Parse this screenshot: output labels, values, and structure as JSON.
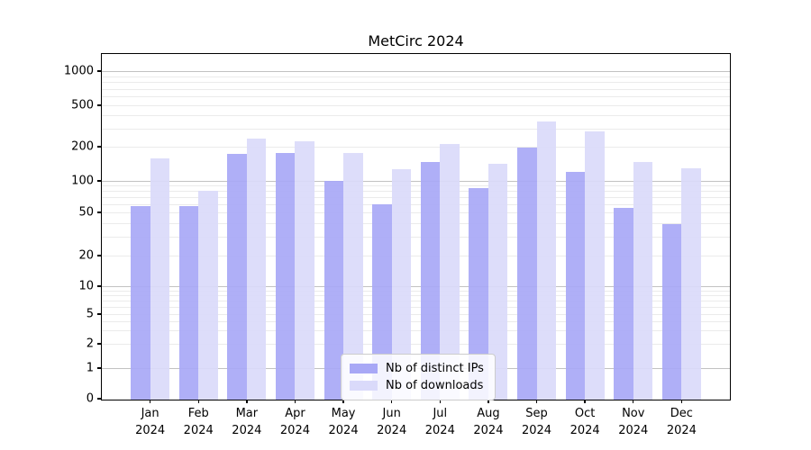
{
  "title": "MetCirc 2024",
  "colors": {
    "bar_distinct_ips": "#a8a8f6",
    "bar_downloads": "#dadafa",
    "grid_major": "#c2c2c2",
    "grid_minor": "#ebebeb",
    "spine": "#000000",
    "legend_border": "#cccccc"
  },
  "legend": {
    "items": [
      {
        "label": "Nb of distinct IPs",
        "color_key": "bar_distinct_ips"
      },
      {
        "label": "Nb of downloads",
        "color_key": "bar_downloads"
      }
    ],
    "position": "lower center"
  },
  "chart_data": {
    "type": "bar",
    "title": "MetCirc 2024",
    "categories": [
      "Jan 2024",
      "Feb 2024",
      "Mar 2024",
      "Apr 2024",
      "May 2024",
      "Jun 2024",
      "Jul 2024",
      "Aug 2024",
      "Sep 2024",
      "Oct 2024",
      "Nov 2024",
      "Dec 2024"
    ],
    "series": [
      {
        "name": "Nb of distinct IPs",
        "values": [
          57,
          57,
          172,
          176,
          100,
          60,
          148,
          85,
          196,
          121,
          55,
          39
        ]
      },
      {
        "name": "Nb of downloads",
        "values": [
          158,
          80,
          237,
          225,
          176,
          126,
          213,
          141,
          350,
          281,
          146,
          129
        ]
      }
    ],
    "xlabel": "",
    "ylabel": "",
    "yscale": "symlog",
    "ytick_labels": [
      "0",
      "1",
      "2",
      "5",
      "10",
      "20",
      "50",
      "100",
      "200",
      "500",
      "1000"
    ],
    "yticks": [
      0,
      1,
      2,
      5,
      10,
      20,
      50,
      100,
      200,
      500,
      1000
    ],
    "ylim": [
      0,
      1500
    ],
    "grid": "horizontal major+minor (log)",
    "legend_position": "lower center"
  }
}
